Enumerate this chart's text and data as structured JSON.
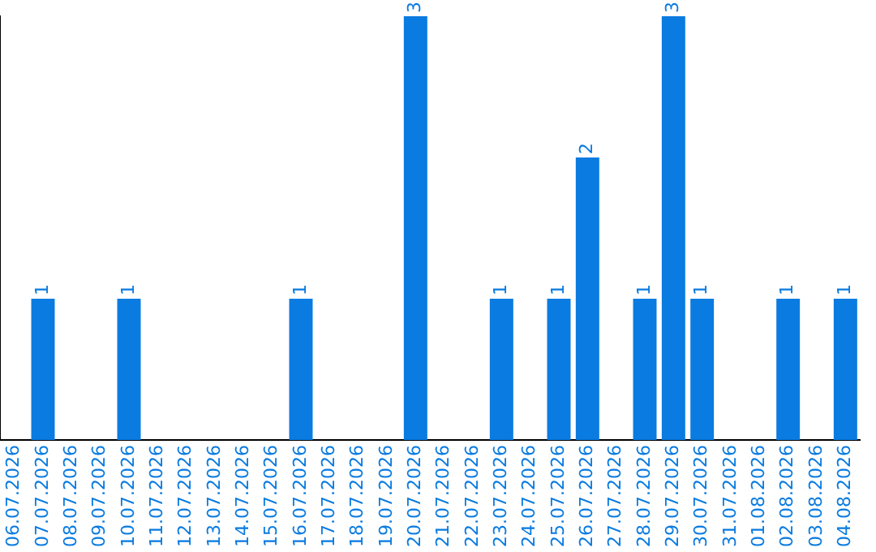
{
  "chart_data": {
    "type": "bar",
    "categories": [
      "06.07.2026",
      "07.07.2026",
      "08.07.2026",
      "09.07.2026",
      "10.07.2026",
      "11.07.2026",
      "12.07.2026",
      "13.07.2026",
      "14.07.2026",
      "15.07.2026",
      "16.07.2026",
      "17.07.2026",
      "18.07.2026",
      "19.07.2026",
      "20.07.2026",
      "21.07.2026",
      "22.07.2026",
      "23.07.2026",
      "24.07.2026",
      "25.07.2026",
      "26.07.2026",
      "27.07.2026",
      "28.07.2026",
      "29.07.2026",
      "30.07.2026",
      "31.07.2026",
      "01.08.2026",
      "02.08.2026",
      "03.08.2026",
      "04.08.2026"
    ],
    "values": [
      0,
      1,
      0,
      0,
      1,
      0,
      0,
      0,
      0,
      0,
      1,
      0,
      0,
      0,
      3,
      0,
      0,
      1,
      0,
      1,
      2,
      0,
      1,
      3,
      1,
      0,
      0,
      1,
      0,
      1
    ],
    "value_labels": [
      null,
      "1",
      null,
      null,
      "1",
      null,
      null,
      null,
      null,
      null,
      "1",
      null,
      null,
      null,
      "3",
      null,
      null,
      "1",
      null,
      "1",
      "2",
      null,
      "1",
      "3",
      "1",
      null,
      null,
      "1",
      null,
      "1"
    ],
    "color": "#0a7be0",
    "grid": false,
    "legend": false,
    "tick_labels": "x"
  }
}
